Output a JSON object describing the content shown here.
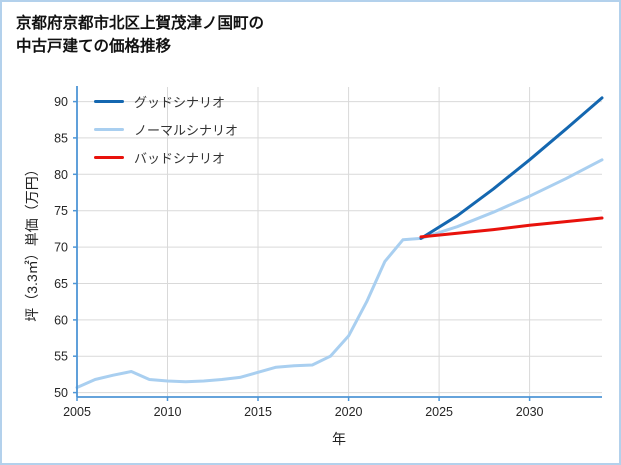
{
  "page": {
    "title": "京都府京都市北区上賀茂津ノ国町の\n中古戸建ての価格推移"
  },
  "chart_data": {
    "type": "line",
    "title": "京都府京都市北区上賀茂津ノ国町の中古戸建ての価格推移",
    "xlabel": "年",
    "ylabel": "坪（3.3㎡）単価（万円）",
    "xlim": [
      2005,
      2034
    ],
    "ylim": [
      49.4,
      92.0
    ],
    "xticks": [
      2005,
      2010,
      2015,
      2020,
      2025,
      2030
    ],
    "yticks": [
      50,
      55,
      60,
      65,
      70,
      75,
      80,
      85,
      90
    ],
    "grid": true,
    "legend_position": "upper-left",
    "colors": {
      "axis": "#4f96d6",
      "grid": "#d9d9d9",
      "border": "#b3d1ec",
      "tick_text": "#262626"
    },
    "series": [
      {
        "name": "グッドシナリオ",
        "color": "#1467b0",
        "width": 3,
        "x": [
          2024,
          2026,
          2028,
          2030,
          2032,
          2034
        ],
        "values": [
          71.2,
          74.3,
          78.0,
          82.0,
          86.2,
          90.5
        ]
      },
      {
        "name": "ノーマルシナリオ",
        "color": "#a9cff0",
        "width": 3,
        "x": [
          2005,
          2006,
          2007,
          2008,
          2009,
          2010,
          2011,
          2012,
          2013,
          2014,
          2015,
          2016,
          2017,
          2018,
          2019,
          2020,
          2021,
          2022,
          2023,
          2024,
          2026,
          2028,
          2030,
          2032,
          2034
        ],
        "values": [
          50.7,
          51.8,
          52.4,
          52.9,
          51.8,
          51.6,
          51.5,
          51.6,
          51.8,
          52.1,
          52.8,
          53.5,
          53.7,
          53.8,
          55.0,
          57.8,
          62.5,
          68.0,
          71.0,
          71.2,
          72.8,
          74.8,
          77.0,
          79.4,
          82.0
        ]
      },
      {
        "name": "バッドシナリオ",
        "color": "#e8120c",
        "width": 3,
        "x": [
          2024,
          2026,
          2028,
          2030,
          2032,
          2034
        ],
        "values": [
          71.4,
          71.9,
          72.4,
          73.0,
          73.5,
          74.0
        ]
      }
    ]
  }
}
